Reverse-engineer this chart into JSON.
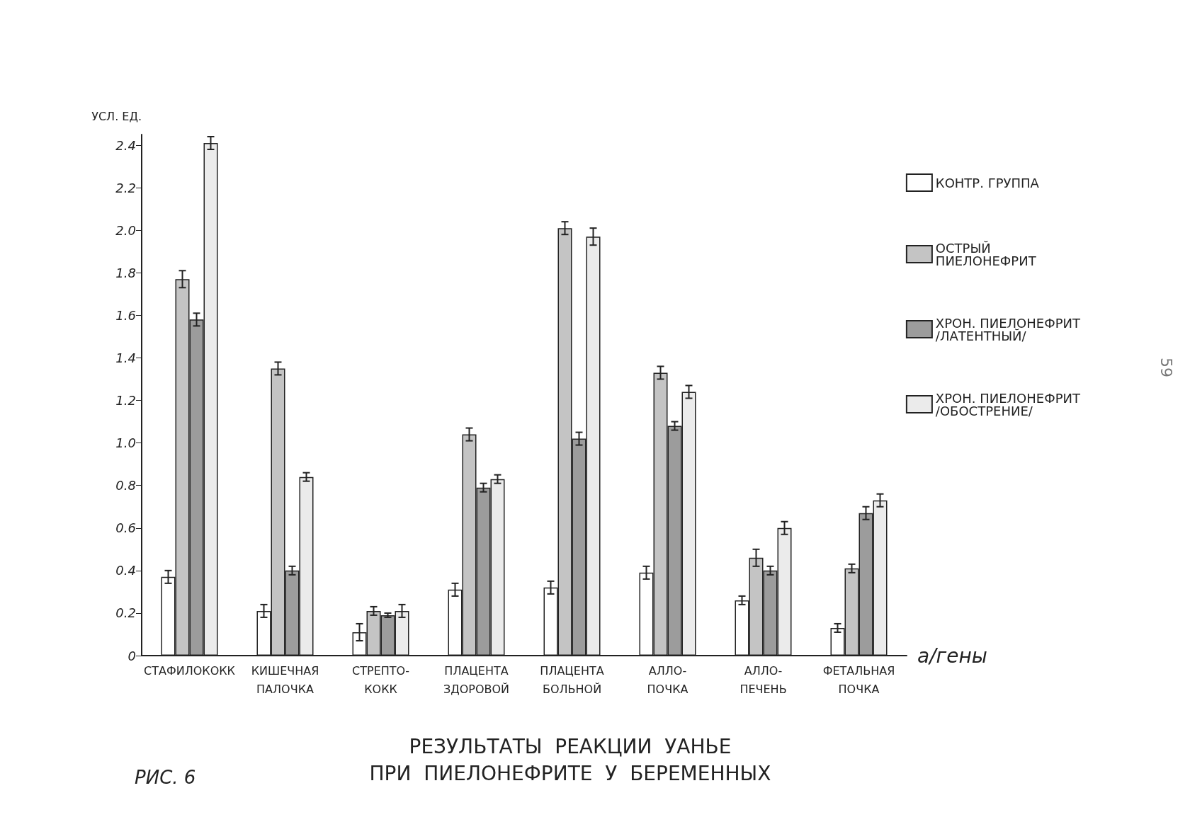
{
  "chart_data": {
    "type": "bar",
    "title": "РЕЗУЛЬТАТЫ  РЕАКЦИИ  УАНЬЕ\nПРИ  ПИЕЛОНЕФРИТЕ  У  БЕРЕМЕННЫХ",
    "ylabel": "УСЛ. ЕД.",
    "xlabel": "а/гены",
    "categories": [
      "СТАФИЛОКОКК",
      "КИШЕЧНАЯ\nПАЛОЧКА",
      "СТРЕПТО-\nКОКК",
      "ПЛАЦЕНТА\nЗДОРОВОЙ",
      "ПЛАЦЕНТА\nБОЛЬНОЙ",
      "АЛЛО-\nПОЧКА",
      "АЛЛО-\nПЕЧЕНЬ",
      "ФЕТАЛЬНАЯ\nПОЧКА"
    ],
    "series": [
      {
        "name": "КОНТР. ГРУППА",
        "color": "#ffffff",
        "values": [
          0.37,
          0.21,
          0.11,
          0.31,
          0.32,
          0.39,
          0.26,
          0.13
        ],
        "errors": [
          0.03,
          0.03,
          0.04,
          0.03,
          0.03,
          0.03,
          0.02,
          0.02
        ]
      },
      {
        "name": "ОСТРЫЙ\nПИЕЛОНЕФРИТ",
        "color": "#c4c4c4",
        "values": [
          1.77,
          1.35,
          0.21,
          1.04,
          2.01,
          1.33,
          0.46,
          0.41
        ],
        "errors": [
          0.04,
          0.03,
          0.02,
          0.03,
          0.03,
          0.03,
          0.04,
          0.02
        ]
      },
      {
        "name": "ХРОН. ПИЕЛОНЕФРИТ\n/ЛАТЕНТНЫЙ/",
        "color": "#9c9c9c",
        "values": [
          1.58,
          0.4,
          0.19,
          0.79,
          1.02,
          1.08,
          0.4,
          0.67
        ],
        "errors": [
          0.03,
          0.02,
          0.01,
          0.02,
          0.03,
          0.02,
          0.02,
          0.03
        ]
      },
      {
        "name": "ХРОН. ПИЕЛОНЕФРИТ\n/ОБОСТРЕНИЕ/",
        "color": "#ebebeb",
        "values": [
          2.41,
          0.84,
          0.21,
          0.83,
          1.97,
          1.24,
          0.6,
          0.73
        ],
        "errors": [
          0.03,
          0.02,
          0.03,
          0.02,
          0.04,
          0.03,
          0.03,
          0.03
        ]
      }
    ],
    "ylim": [
      0,
      2.45
    ],
    "yticks": [
      0,
      0.2,
      0.4,
      0.6,
      0.8,
      {
        "value": 1,
        "label": "1.0"
      },
      1.2,
      1.4,
      1.6,
      1.8,
      {
        "value": 2,
        "label": "2.0"
      },
      2.2,
      2.4
    ],
    "grid": false,
    "legend": "right",
    "annotations": [
      "РИС. 6",
      "59"
    ]
  }
}
